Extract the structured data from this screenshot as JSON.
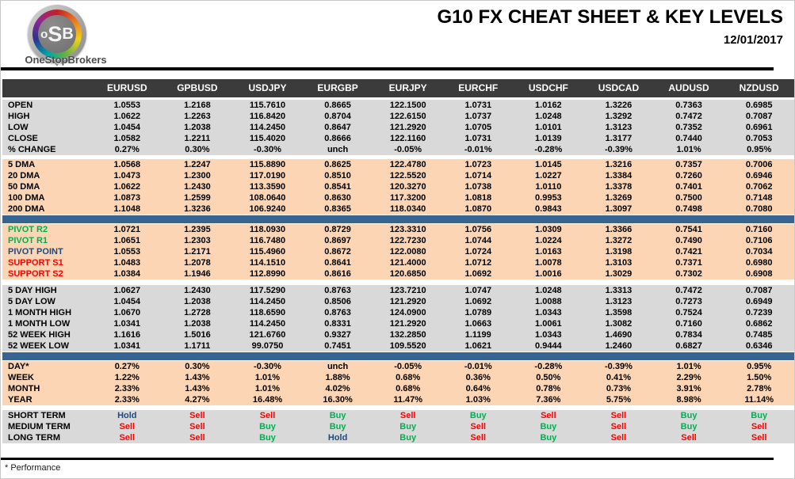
{
  "header": {
    "title": "G10 FX CHEAT SHEET & KEY LEVELS",
    "date": "12/01/2017",
    "logo": {
      "letters": [
        "o",
        "S",
        "B"
      ],
      "brand": "OneStopBrokers"
    }
  },
  "footer": {
    "note": "* Performance"
  },
  "colors": {
    "header_row_bg": "#3b3b3b",
    "gray_section_bg": "#d9d9d9",
    "peach_section_bg": "#fcd5b4",
    "blue_divider": "#366591",
    "buy_green": "#00b050",
    "sell_red": "#ff0000",
    "hold_navy": "#1f497d",
    "pivot_resistance_green": "#00b050",
    "pivot_point_navy": "#1f497d",
    "support_red": "#ff0000"
  },
  "table": {
    "columns": [
      "EURUSD",
      "GPBUSD",
      "USDJPY",
      "EURGBP",
      "EURJPY",
      "EURCHF",
      "USDCHF",
      "USDCAD",
      "AUDUSD",
      "NZDUSD"
    ],
    "signal_colors": {
      "Buy": "#00b050",
      "Sell": "#ff0000",
      "Hold": "#1f497d"
    },
    "sections": [
      {
        "id": "ohlc",
        "bg": "gray",
        "bar_after": false,
        "rows": [
          {
            "label": "OPEN",
            "values": [
              "1.0553",
              "1.2168",
              "115.7610",
              "0.8665",
              "122.1500",
              "1.0731",
              "1.0162",
              "1.3226",
              "0.7363",
              "0.6985"
            ]
          },
          {
            "label": "HIGH",
            "values": [
              "1.0622",
              "1.2263",
              "116.8420",
              "0.8704",
              "122.6150",
              "1.0737",
              "1.0248",
              "1.3292",
              "0.7472",
              "0.7087"
            ]
          },
          {
            "label": "LOW",
            "values": [
              "1.0454",
              "1.2038",
              "114.2450",
              "0.8647",
              "121.2920",
              "1.0705",
              "1.0101",
              "1.3123",
              "0.7352",
              "0.6961"
            ]
          },
          {
            "label": "CLOSE",
            "values": [
              "1.0582",
              "1.2211",
              "115.4020",
              "0.8666",
              "122.1160",
              "1.0731",
              "1.0139",
              "1.3177",
              "0.7440",
              "0.7053"
            ]
          },
          {
            "label": "% CHANGE",
            "values": [
              "0.27%",
              "0.30%",
              "-0.30%",
              "unch",
              "-0.05%",
              "-0.01%",
              "-0.28%",
              "-0.39%",
              "1.01%",
              "0.95%"
            ]
          }
        ]
      },
      {
        "id": "dma",
        "bg": "peach",
        "bar_after": true,
        "rows": [
          {
            "label": "5 DMA",
            "values": [
              "1.0568",
              "1.2247",
              "115.8890",
              "0.8625",
              "122.4780",
              "1.0723",
              "1.0145",
              "1.3216",
              "0.7357",
              "0.7006"
            ]
          },
          {
            "label": "20 DMA",
            "values": [
              "1.0473",
              "1.2300",
              "117.0190",
              "0.8510",
              "122.5520",
              "1.0714",
              "1.0227",
              "1.3384",
              "0.7260",
              "0.6946"
            ]
          },
          {
            "label": "50 DMA",
            "values": [
              "1.0622",
              "1.2430",
              "113.3590",
              "0.8541",
              "120.3270",
              "1.0738",
              "1.0110",
              "1.3378",
              "0.7401",
              "0.7062"
            ]
          },
          {
            "label": "100 DMA",
            "values": [
              "1.0873",
              "1.2599",
              "108.0640",
              "0.8630",
              "117.3200",
              "1.0818",
              "0.9953",
              "1.3269",
              "0.7500",
              "0.7148"
            ]
          },
          {
            "label": "200 DMA",
            "values": [
              "1.1048",
              "1.3236",
              "106.9240",
              "0.8365",
              "118.0340",
              "1.0870",
              "0.9843",
              "1.3097",
              "0.7498",
              "0.7080"
            ]
          }
        ]
      },
      {
        "id": "pivots",
        "bg": "peach",
        "bar_after": false,
        "rows": [
          {
            "label": "PIVOT R2",
            "label_color": "#00b050",
            "values": [
              "1.0721",
              "1.2395",
              "118.0930",
              "0.8729",
              "123.3310",
              "1.0756",
              "1.0309",
              "1.3366",
              "0.7541",
              "0.7160"
            ]
          },
          {
            "label": "PIVOT R1",
            "label_color": "#00b050",
            "values": [
              "1.0651",
              "1.2303",
              "116.7480",
              "0.8697",
              "122.7230",
              "1.0744",
              "1.0224",
              "1.3272",
              "0.7490",
              "0.7106"
            ]
          },
          {
            "label": "PIVOT POINT",
            "label_color": "#1f497d",
            "values": [
              "1.0553",
              "1.2171",
              "115.4960",
              "0.8672",
              "122.0080",
              "1.0724",
              "1.0163",
              "1.3198",
              "0.7421",
              "0.7034"
            ]
          },
          {
            "label": "SUPPORT S1",
            "label_color": "#ff0000",
            "values": [
              "1.0483",
              "1.2078",
              "114.1510",
              "0.8641",
              "121.4000",
              "1.0712",
              "1.0078",
              "1.3103",
              "0.7371",
              "0.6980"
            ]
          },
          {
            "label": "SUPPORT S2",
            "label_color": "#ff0000",
            "values": [
              "1.0384",
              "1.1946",
              "112.8990",
              "0.8616",
              "120.6850",
              "1.0692",
              "1.0016",
              "1.3029",
              "0.7302",
              "0.6908"
            ]
          }
        ]
      },
      {
        "id": "ranges",
        "bg": "gray",
        "bar_after": true,
        "rows": [
          {
            "label": "5 DAY HIGH",
            "values": [
              "1.0627",
              "1.2430",
              "117.5290",
              "0.8763",
              "123.7210",
              "1.0747",
              "1.0248",
              "1.3313",
              "0.7472",
              "0.7087"
            ]
          },
          {
            "label": "5 DAY LOW",
            "values": [
              "1.0454",
              "1.2038",
              "114.2450",
              "0.8506",
              "121.2920",
              "1.0692",
              "1.0088",
              "1.3123",
              "0.7273",
              "0.6949"
            ]
          },
          {
            "label": "1 MONTH HIGH",
            "values": [
              "1.0670",
              "1.2728",
              "118.6590",
              "0.8763",
              "124.0900",
              "1.0789",
              "1.0343",
              "1.3598",
              "0.7524",
              "0.7239"
            ]
          },
          {
            "label": "1 MONTH LOW",
            "values": [
              "1.0341",
              "1.2038",
              "114.2450",
              "0.8331",
              "121.2920",
              "1.0663",
              "1.0061",
              "1.3082",
              "0.7160",
              "0.6862"
            ]
          },
          {
            "label": "52 WEEK HIGH",
            "values": [
              "1.1616",
              "1.5016",
              "121.6760",
              "0.9327",
              "132.2850",
              "1.1199",
              "1.0343",
              "1.4690",
              "0.7834",
              "0.7485"
            ]
          },
          {
            "label": "52 WEEK LOW",
            "values": [
              "1.0341",
              "1.1711",
              "99.0750",
              "0.7451",
              "109.5520",
              "1.0621",
              "0.9444",
              "1.2460",
              "0.6827",
              "0.6346"
            ]
          }
        ]
      },
      {
        "id": "performance",
        "bg": "peach",
        "bar_after": false,
        "rows": [
          {
            "label": "DAY*",
            "values": [
              "0.27%",
              "0.30%",
              "-0.30%",
              "unch",
              "-0.05%",
              "-0.01%",
              "-0.28%",
              "-0.39%",
              "1.01%",
              "0.95%"
            ]
          },
          {
            "label": "WEEK",
            "values": [
              "1.22%",
              "1.43%",
              "1.01%",
              "1.88%",
              "0.68%",
              "0.36%",
              "0.50%",
              "0.41%",
              "2.29%",
              "1.50%"
            ]
          },
          {
            "label": "MONTH",
            "values": [
              "2.33%",
              "1.43%",
              "1.01%",
              "4.02%",
              "0.68%",
              "0.64%",
              "0.78%",
              "0.73%",
              "3.91%",
              "2.78%"
            ]
          },
          {
            "label": "YEAR",
            "values": [
              "2.33%",
              "4.27%",
              "16.48%",
              "16.30%",
              "11.47%",
              "1.03%",
              "7.36%",
              "5.75%",
              "8.98%",
              "11.14%"
            ]
          }
        ]
      },
      {
        "id": "signals",
        "bg": "gray",
        "bar_after": false,
        "signal": true,
        "rows": [
          {
            "label": "SHORT TERM",
            "values": [
              "Hold",
              "Sell",
              "Sell",
              "Buy",
              "Sell",
              "Buy",
              "Sell",
              "Sell",
              "Buy",
              "Buy"
            ]
          },
          {
            "label": "MEDIUM TERM",
            "values": [
              "Sell",
              "Sell",
              "Buy",
              "Buy",
              "Buy",
              "Sell",
              "Buy",
              "Sell",
              "Buy",
              "Sell"
            ]
          },
          {
            "label": "LONG TERM",
            "values": [
              "Sell",
              "Sell",
              "Buy",
              "Hold",
              "Buy",
              "Sell",
              "Buy",
              "Sell",
              "Sell",
              "Sell"
            ]
          }
        ]
      }
    ]
  }
}
